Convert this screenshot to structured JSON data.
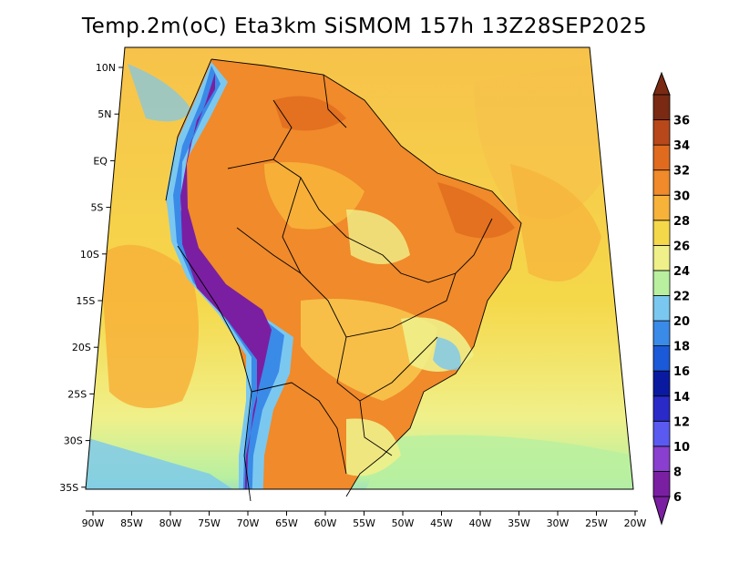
{
  "title": "Temp.2m(oC) Eta3km SiSMOM 157h 13Z28SEP2025",
  "map": {
    "variable": "2 m air temperature",
    "units": "oC",
    "lat_labels": [
      "10N",
      "5N",
      "EQ",
      "5S",
      "10S",
      "15S",
      "20S",
      "25S",
      "30S",
      "35S"
    ],
    "lon_labels": [
      "90W",
      "85W",
      "80W",
      "75W",
      "70W",
      "65W",
      "60W",
      "55W",
      "50W",
      "45W",
      "40W",
      "35W",
      "30W",
      "25W",
      "20W"
    ]
  },
  "colorbar": {
    "labels": [
      "6",
      "8",
      "10",
      "12",
      "14",
      "16",
      "18",
      "20",
      "22",
      "24",
      "26",
      "28",
      "30",
      "32",
      "34",
      "36"
    ],
    "colors": [
      "#7a1fa2",
      "#8a3fd0",
      "#5a5af0",
      "#2a2ac8",
      "#0a1aa0",
      "#1a5ad8",
      "#3a8ae8",
      "#7ac8f0",
      "#b8f0a0",
      "#f0f08a",
      "#f5d84a",
      "#f7b23a",
      "#f08a2a",
      "#e06a1e",
      "#b8481a",
      "#7a2a12"
    ]
  },
  "colors": {
    "ocean_warm": "#f7c24a",
    "ocean_mid": "#f5d84a",
    "ocean_cool": "#f0f08a",
    "land_hot": "#f08a2a",
    "andes": "#7a1fa2",
    "border": "#000000"
  }
}
